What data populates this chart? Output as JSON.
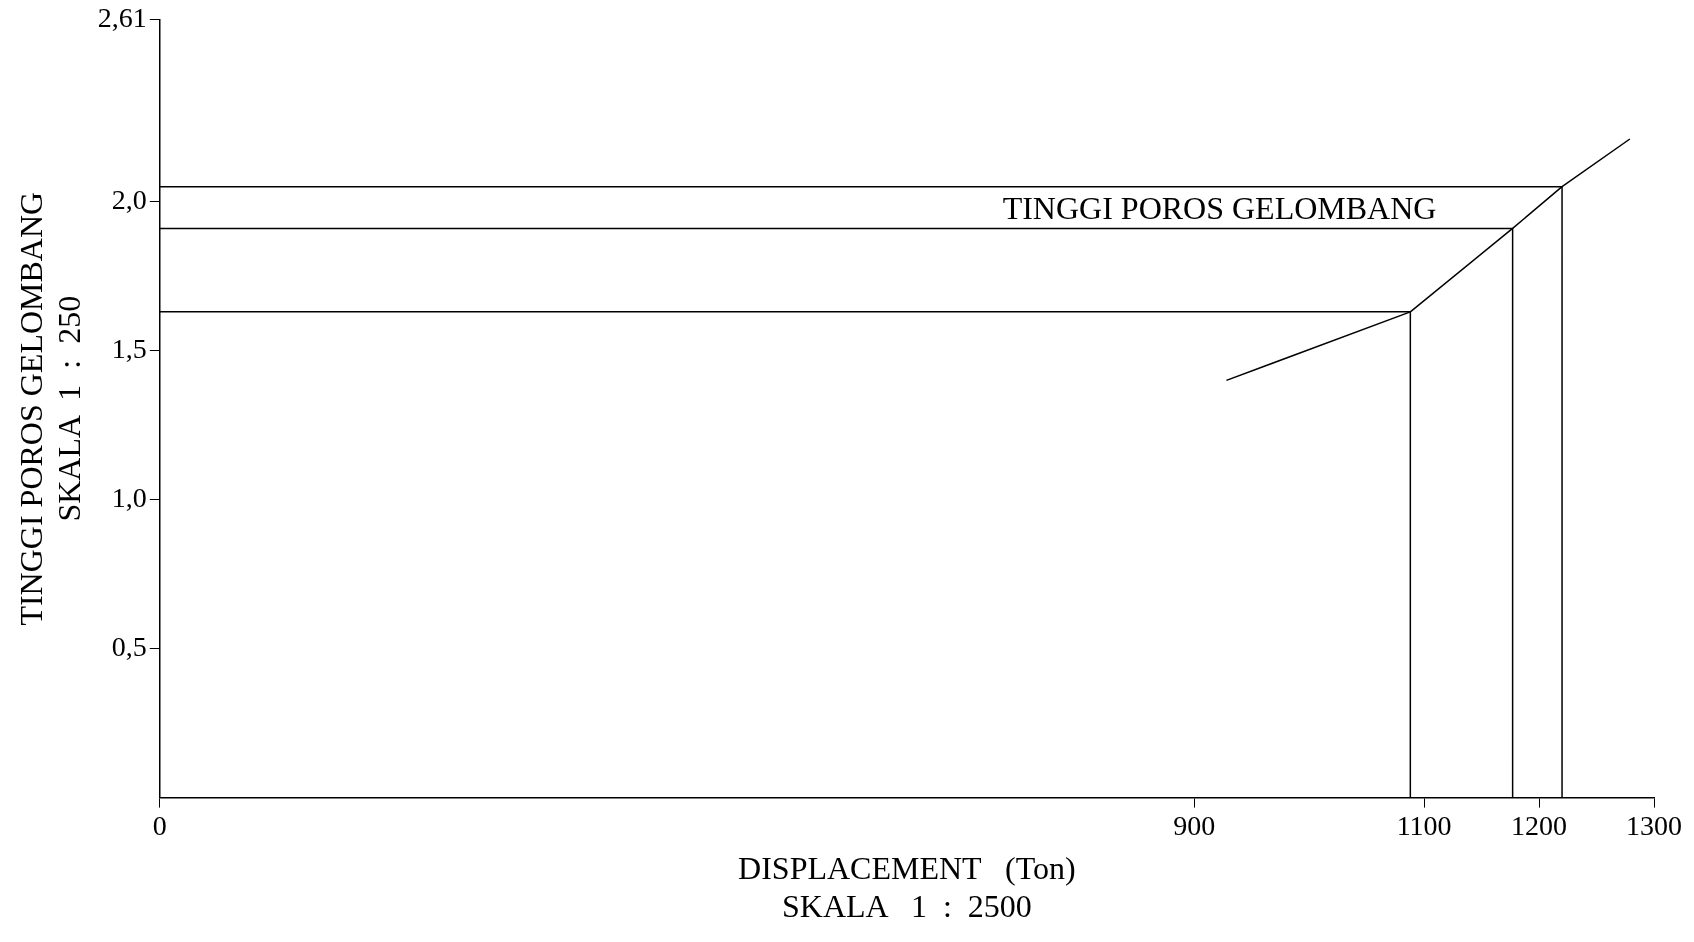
{
  "chart_data": {
    "type": "line",
    "xlabel": "DISPLACEMENT   (Ton)\nSKALA   1  :  2500",
    "ylabel": "TINGGI POROS GELOMBANG\nSKALA  1  :  250",
    "series": [
      {
        "color": "#000000",
        "x": [
          928,
          1088,
          1177,
          1220,
          1279
        ],
        "values": [
          1.4,
          1.63,
          1.91,
          2.05,
          2.21
        ]
      },
      {
        "color": "#000000",
        "x": [
          0,
          1088,
          1088
        ],
        "values": [
          1.63,
          1.63,
          0
        ]
      },
      {
        "color": "#000000",
        "x": [
          0,
          1177,
          1177
        ],
        "values": [
          1.91,
          1.91,
          0
        ]
      },
      {
        "color": "#000000",
        "x": [
          0,
          1220,
          1220
        ],
        "values": [
          2.05,
          2.05,
          0
        ]
      }
    ],
    "annotations": [
      {
        "text": "TINGGI POROS GELOMBANG",
        "x": 922,
        "y": 1.91
      }
    ],
    "xlim": [
      0,
      1300
    ],
    "xticks": [
      0,
      900,
      1100,
      1200,
      1300
    ],
    "ylim": [
      0,
      2.61
    ],
    "yticks": [
      {
        "value": 0.5,
        "label": "0,5"
      },
      {
        "value": 1,
        "label": "1,0"
      },
      {
        "value": 1.5,
        "label": "1,5"
      },
      {
        "value": 2,
        "label": "2,0"
      },
      {
        "value": 2.61,
        "label": "2,61"
      }
    ],
    "grid": false,
    "legend": false,
    "marker": "none",
    "line_style": "solid"
  }
}
